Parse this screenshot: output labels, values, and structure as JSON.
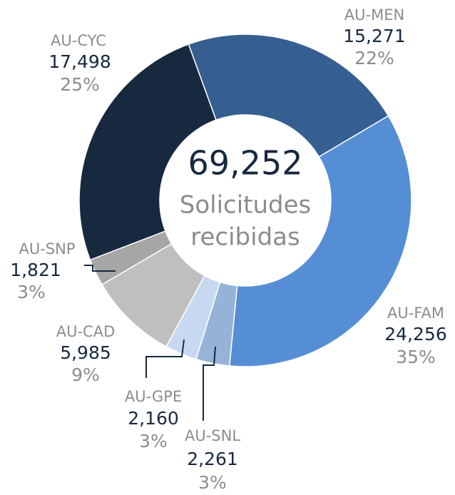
{
  "chart_data": {
    "type": "donut",
    "center_total": "69,252",
    "center_label": [
      "Solicitudes",
      "recibidas"
    ],
    "categories": [
      "AU-MEN",
      "AU-FAM",
      "AU-SNL",
      "AU-GPE",
      "AU-CAD",
      "AU-SNP",
      "AU-CYC"
    ],
    "values": [
      15271,
      24256,
      2261,
      2160,
      5985,
      1821,
      17498
    ],
    "value_labels": [
      "15,271",
      "24,256",
      "2,261",
      "2,160",
      "5,985",
      "1,821",
      "17,498"
    ],
    "percentages": [
      22,
      35,
      3,
      3,
      9,
      3,
      25
    ],
    "percentage_labels": [
      "22%",
      "35%",
      "3%",
      "3%",
      "9%",
      "3%",
      "25%"
    ],
    "colors": [
      "#365f91",
      "#558ed5",
      "#95b3d7",
      "#c6d9f1",
      "#bfbfbf",
      "#a6a6a6",
      "#17293f"
    ]
  }
}
